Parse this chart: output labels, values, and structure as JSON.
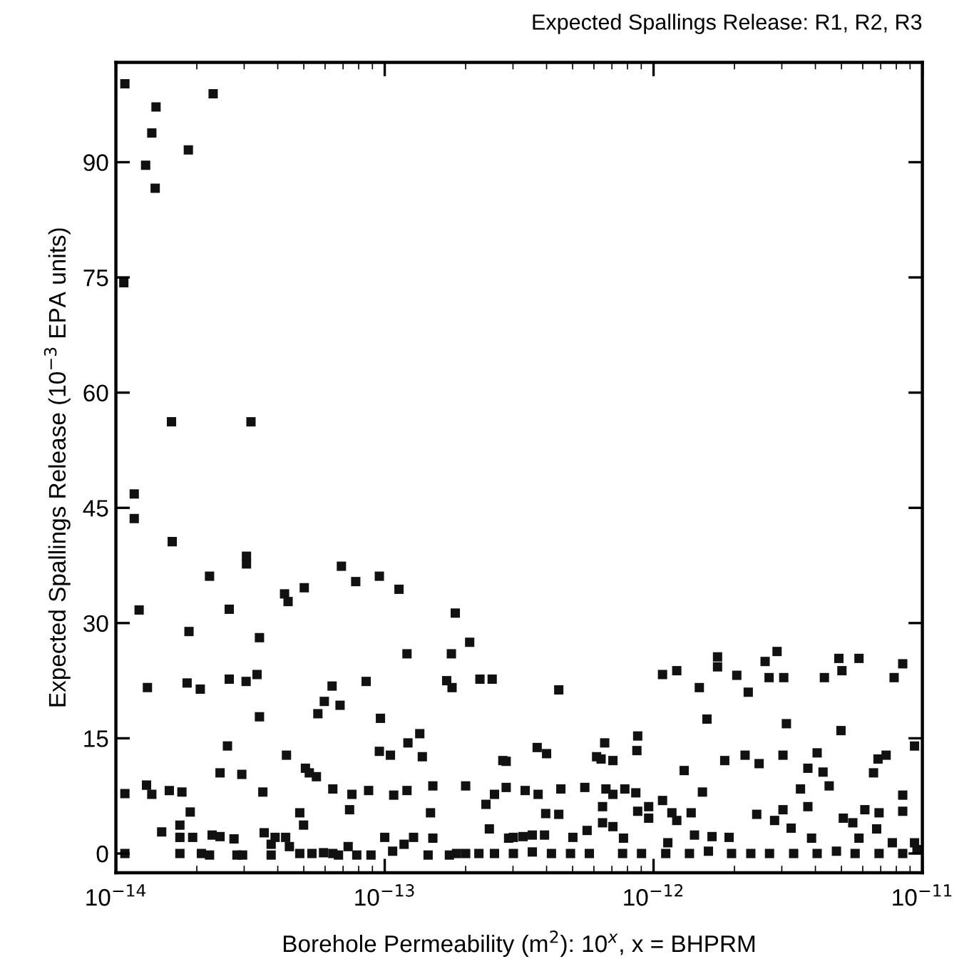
{
  "chart_data": {
    "type": "scatter",
    "title": "Expected Spallings Release: R1, R2, R3",
    "xlabel": "Borehole Permeability (m$^{2}$): 10$^{x}$, x = BHPRM",
    "ylabel": "Expected Spallings Release (10$^{−3}$ EPA units)",
    "log": "x",
    "marker": "square",
    "xlim": [
      1e-14,
      1e-11
    ],
    "xticks": [
      {
        "value": 1e-14,
        "label": "10$^{−14}$"
      },
      {
        "value": 1e-13,
        "label": "10$^{−13}$"
      },
      {
        "value": 1e-12,
        "label": "10$^{−12}$"
      },
      {
        "value": 1e-11,
        "label": "10$^{−11}$"
      }
    ],
    "ylim": [
      -2.5,
      103
    ],
    "yticks": [
      0,
      15,
      30,
      45,
      60,
      75,
      90
    ],
    "series": [
      {
        "color": "#111111",
        "x": [
          1.08e-14,
          2.3e-14,
          1.41e-14,
          1.36e-14,
          1.29e-14,
          1.86e-14,
          1.4e-14,
          1.07e-14,
          1.61e-14,
          3.18e-14,
          1.17e-14,
          1.17e-14,
          1.62e-14,
          1.22e-14,
          2.23e-14,
          1.31e-14,
          1.87e-14,
          1.84e-14,
          2.06e-14,
          2.64e-14,
          3.06e-14,
          3.06e-14,
          3.42e-14,
          2.64e-14,
          3.05e-14,
          3.35e-14,
          3.42e-14,
          2.6e-14,
          2.44e-14,
          2.94e-14,
          1.3e-14,
          1.36e-14,
          1.58e-14,
          1.76e-14,
          1.89e-14,
          1.73e-14,
          1.48e-14,
          1.73e-14,
          1.93e-14,
          2.28e-14,
          2.44e-14,
          2.75e-14,
          1.08e-14,
          1.08e-14,
          1.73e-14,
          2.08e-14,
          2.23e-14,
          2.82e-14,
          2.96e-14,
          3.52e-14,
          3.56e-14,
          3.78e-14,
          3.91e-14,
          4.28e-14,
          4.42e-14,
          3.78e-14,
          4.24e-14,
          4.37e-14,
          5.02e-14,
          4.31e-14,
          4.83e-14,
          4.99e-14,
          5.07e-14,
          5.24e-14,
          5.57e-14,
          6.41e-14,
          4.83e-14,
          5.36e-14,
          5.92e-14,
          5.64e-14,
          5.96e-14,
          6.37e-14,
          6.82e-14,
          6.9e-14,
          7.8e-14,
          8.53e-14,
          9.55e-14,
          9.64e-14,
          1.13e-13,
          7.4e-14,
          7.55e-14,
          8.71e-14,
          7.31e-14,
          6.73e-14,
          7.87e-14,
          8.89e-14,
          1e-13,
          9.55e-14,
          1.05e-13,
          1.08e-13,
          1.21e-13,
          1.21e-13,
          1.22e-13,
          1.35e-13,
          1.38e-13,
          1.51e-13,
          1.48e-13,
          1.51e-13,
          1.07e-13,
          1.18e-13,
          1.28e-13,
          1.45e-13,
          1.74e-13,
          1.85e-13,
          2.56e-13,
          1.83e-13,
          1.77e-13,
          1.7e-13,
          1.78e-13,
          2.07e-13,
          2.26e-13,
          2.51e-13,
          2e-13,
          2.45e-13,
          2.38e-13,
          2.56e-13,
          2.83e-13,
          2.83e-13,
          2.89e-13,
          2e-13,
          2.24e-13,
          6.41e-14,
          4.44e-13,
          1.08e-12,
          1.22e-12,
          1.48e-12,
          1.73e-12,
          1.73e-12,
          2.04e-12,
          2.25e-12,
          2.6e-12,
          2.88e-12,
          2.69e-12,
          3.05e-12,
          4.32e-12,
          4.89e-12,
          5.02e-12,
          5.81e-12,
          7.85e-12,
          8.45e-12,
          1.58e-12,
          3.12e-12,
          4.98e-12,
          2.75e-13,
          3.69e-13,
          4e-13,
          6.58e-13,
          6.14e-13,
          6.38e-13,
          7.06e-13,
          8.73e-13,
          8.67e-13,
          1.3e-12,
          1.84e-12,
          2.19e-12,
          2.47e-12,
          3.03e-12,
          4.06e-12,
          3.75e-12,
          4.27e-12,
          6.58e-12,
          6.84e-12,
          7.33e-12,
          9.35e-12,
          3.33e-13,
          3.72e-13,
          4.52e-13,
          5.55e-13,
          6.65e-13,
          7.06e-13,
          7.82e-13,
          8.59e-13,
          1.52e-12,
          3.52e-12,
          4.5e-12,
          8.45e-12,
          8.45e-12,
          3.97e-13,
          4.44e-13,
          6.46e-13,
          6.46e-13,
          7.06e-13,
          8.73e-13,
          9.59e-13,
          9.59e-13,
          1.08e-12,
          1.17e-12,
          1.22e-12,
          1.38e-12,
          2.42e-12,
          2.82e-12,
          3.03e-12,
          3.25e-12,
          3.75e-12,
          5.08e-12,
          5.51e-12,
          6.11e-12,
          6.9e-12,
          6.76e-12,
          3.01e-13,
          3.27e-13,
          3.54e-13,
          3.93e-13,
          5.01e-13,
          5.66e-13,
          7.73e-13,
          1.13e-12,
          1.42e-12,
          1.65e-12,
          1.91e-12,
          3.87e-12,
          5.81e-12,
          7.73e-12,
          9.35e-12,
          3.01e-13,
          3.54e-13,
          4.17e-13,
          4.91e-13,
          5.77e-13,
          7.67e-13,
          9.02e-13,
          1.11e-12,
          1.36e-12,
          1.6e-12,
          1.95e-12,
          2.3e-12,
          2.7e-12,
          3.32e-12,
          4.06e-12,
          4.79e-12,
          5.62e-12,
          6.9e-12,
          8.45e-12,
          9.55e-12
        ],
        "values": [
          100.2,
          98.9,
          97.2,
          93.8,
          89.6,
          91.6,
          86.6,
          74.3,
          56.2,
          56.2,
          46.8,
          43.6,
          40.6,
          31.7,
          36.1,
          21.6,
          28.9,
          22.2,
          21.4,
          31.8,
          38.7,
          37.7,
          28.1,
          22.7,
          22.4,
          23.3,
          17.8,
          14.0,
          10.5,
          10.3,
          8.9,
          7.7,
          8.2,
          8.0,
          5.4,
          3.7,
          2.8,
          2.1,
          2.1,
          2.4,
          2.2,
          1.9,
          0,
          7.8,
          0,
          0,
          -0.2,
          -0.2,
          -0.2,
          8.0,
          2.7,
          1.2,
          2.1,
          2.1,
          0.9,
          -0.2,
          33.8,
          32.8,
          34.6,
          12.8,
          5.3,
          3.7,
          11.1,
          10.5,
          10.0,
          8.4,
          0,
          0,
          0.1,
          18.2,
          19.8,
          21.8,
          19.3,
          37.4,
          35.4,
          22.4,
          36.1,
          17.6,
          34.4,
          5.7,
          7.7,
          8.2,
          0.9,
          -0.2,
          -0.2,
          -0.2,
          2.1,
          13.3,
          12.8,
          7.6,
          8.2,
          26.0,
          14.4,
          15.6,
          12.6,
          8.8,
          5.3,
          2.0,
          0.3,
          1.2,
          2.1,
          -0.2,
          -0.2,
          0,
          0,
          31.3,
          26.0,
          22.5,
          21.6,
          27.5,
          22.7,
          22.7,
          8.8,
          3.2,
          6.4,
          7.7,
          8.6,
          12.0,
          2.0,
          0,
          0,
          0,
          21.3,
          23.3,
          23.8,
          21.6,
          25.6,
          24.3,
          23.2,
          21.0,
          25.0,
          26.3,
          22.9,
          22.9,
          22.9,
          25.4,
          23.8,
          25.4,
          22.9,
          24.7,
          17.5,
          16.9,
          16.0,
          12.1,
          13.8,
          13.0,
          14.4,
          12.6,
          12.3,
          12.1,
          15.3,
          13.4,
          10.8,
          12.1,
          12.8,
          11.7,
          12.8,
          13.1,
          11.1,
          10.6,
          10.5,
          12.3,
          12.8,
          14.0,
          8.2,
          7.7,
          8.4,
          8.6,
          8.4,
          7.7,
          8.4,
          7.9,
          8.0,
          8.4,
          8.8,
          7.6,
          5.5,
          5.2,
          5.1,
          6.1,
          4.0,
          3.5,
          5.5,
          6.1,
          4.6,
          6.9,
          5.3,
          4.3,
          5.3,
          5.1,
          4.3,
          5.7,
          3.3,
          6.1,
          4.6,
          4.0,
          5.7,
          5.3,
          3.2,
          2.1,
          2.2,
          2.4,
          2.4,
          2.1,
          3.0,
          2.0,
          1.4,
          2.4,
          2.2,
          2.1,
          2.0,
          2.0,
          1.4,
          1.4,
          0,
          0.2,
          0,
          0,
          0,
          0,
          0,
          0,
          0,
          0.3,
          0,
          0,
          0,
          0,
          0,
          0.3,
          0,
          0,
          0,
          0.5
        ]
      }
    ]
  }
}
